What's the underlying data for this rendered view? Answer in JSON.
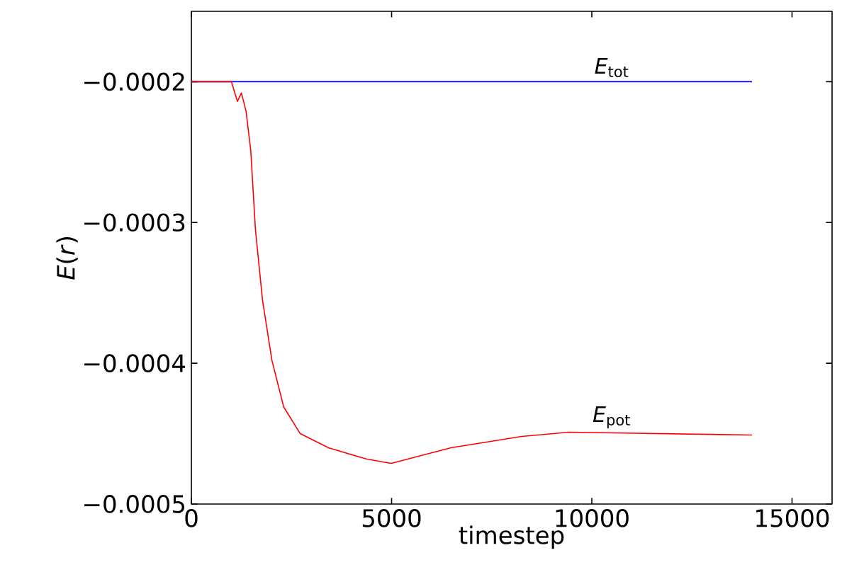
{
  "chart_data": {
    "type": "line",
    "xlabel": "timestep",
    "ylabel": "*E*(*r*)",
    "xlim": [
      0,
      16000
    ],
    "ylim": [
      -0.0005,
      -0.00015
    ],
    "xticks": [
      0,
      5000,
      10000,
      15000
    ],
    "yticks": [
      {
        "value": -0.0005,
        "label": "−0.0005"
      },
      {
        "value": -0.0004,
        "label": "−0.0004"
      },
      {
        "value": -0.0003,
        "label": "−0.0003"
      },
      {
        "value": -0.0002,
        "label": "−0.0002"
      }
    ],
    "series": [
      {
        "name": "*E*$_{tot}$",
        "color": "#0000ff",
        "x": [
          0,
          14000
        ],
        "values": [
          -0.0002,
          -0.0002
        ]
      },
      {
        "name": "*E*$_{pot}$",
        "color": "#ff0000",
        "x": [
          0,
          1000,
          1150,
          1250,
          1366,
          1483,
          1600,
          1776,
          2012,
          2305,
          2718,
          3424,
          4366,
          4952,
          5012,
          6484,
          8249,
          9424,
          14000
        ],
        "values": [
          -0.0002,
          -0.0002,
          -0.000214,
          -0.000208,
          -0.000221,
          -0.000249,
          -0.000305,
          -0.000355,
          -0.000398,
          -0.000431,
          -0.00045,
          -0.00046,
          -0.000468,
          -0.000471,
          -0.000471,
          -0.00046,
          -0.000452,
          -0.000449,
          -0.000451
        ]
      }
    ],
    "marker": "none",
    "line_style": "solid"
  }
}
